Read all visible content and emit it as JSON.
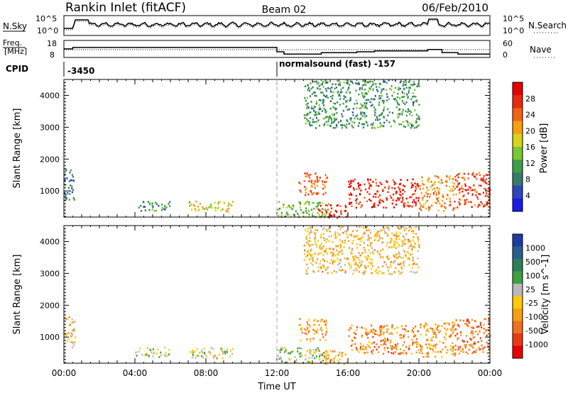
{
  "header": {
    "station": "Rankin Inlet (fitACF)",
    "beam": "Beam 02",
    "date": "06/Feb/2010"
  },
  "noise_panel": {
    "left_label": "N.Sky",
    "right_label": "N.Search",
    "left_ticks": [
      "10^5",
      "10^0"
    ],
    "right_ticks": [
      "10^5",
      "10^0"
    ]
  },
  "freq_panel": {
    "left_label_1": "Freq.",
    "left_label_2": "[MHz]",
    "right_label": "Nave",
    "left_ticks": [
      "18",
      "8"
    ],
    "right_ticks": [
      "60",
      "0"
    ],
    "freq_steps": [
      {
        "t": 0.0,
        "v": 15.6
      },
      {
        "t": 0.5,
        "v": 16.8
      },
      {
        "t": 11.95,
        "v": 16.8
      },
      {
        "t": 12.0,
        "v": 13.0
      },
      {
        "t": 12.4,
        "v": 11.0
      },
      {
        "t": 14.5,
        "v": 12.2
      },
      {
        "t": 16.5,
        "v": 13.0
      },
      {
        "t": 17.5,
        "v": 13.8
      },
      {
        "t": 20.5,
        "v": 15.0
      },
      {
        "t": 21.3,
        "v": 12.3
      },
      {
        "t": 22.2,
        "v": 11.0
      },
      {
        "t": 24.0,
        "v": 11.0
      }
    ]
  },
  "cpid": {
    "label": "CPID",
    "first": "-3450",
    "second": "normalsound (fast) -157"
  },
  "power_panel": {
    "ylabel": "Slant Range [km]",
    "colorbar_label": "Power [dB]",
    "colorbar_ticks": [
      "28",
      "24",
      "20",
      "16",
      "12",
      "8",
      "4"
    ],
    "colors": [
      "#1a1ae6",
      "#2e46b8",
      "#377a68",
      "#3e9e48",
      "#78c832",
      "#d9d21a",
      "#f5a014",
      "#f06414",
      "#e82a14",
      "#e60000"
    ]
  },
  "velocity_panel": {
    "ylabel": "Slant Range [km]",
    "colorbar_label": "Velocity [m s^-1]",
    "colorbar_ticks": [
      "1000",
      "500",
      "100",
      "25",
      "-25",
      "-100",
      "-500",
      "-1000"
    ],
    "colors": [
      "#1e3ca0",
      "#2a5e8c",
      "#2e7e5a",
      "#3ea040",
      "#b9b9b9",
      "#ffc90a",
      "#f5a014",
      "#f07020",
      "#e83a14",
      "#e60000"
    ]
  },
  "axes": {
    "x_ticks": [
      "00:00",
      "04:00",
      "08:00",
      "12:00",
      "16:00",
      "20:00",
      "00:00"
    ],
    "x_label": "Time UT",
    "y_ticks": [
      "4000",
      "3000",
      "2000",
      "1000"
    ]
  },
  "chart_data": {
    "type": "heatmap",
    "title": "Rankin Inlet (fitACF)",
    "xlabel": "Time UT",
    "ylabel": "Slant Range [km]",
    "xlim": [
      0,
      24
    ],
    "ylim": [
      180,
      4500
    ],
    "panels": [
      {
        "name": "Power [dB]",
        "range": [
          0,
          32
        ],
        "regions": [
          {
            "t": [
              0.0,
              0.6
            ],
            "r": [
              700,
              1700
            ],
            "v": 8
          },
          {
            "t": [
              4.0,
              6.0
            ],
            "r": [
              400,
              700
            ],
            "v": 10
          },
          {
            "t": [
              7.0,
              9.5
            ],
            "r": [
              350,
              700
            ],
            "v": 18
          },
          {
            "t": [
              12.0,
              15.0
            ],
            "r": [
              200,
              700
            ],
            "v": 14
          },
          {
            "t": [
              13.2,
              14.8
            ],
            "r": [
              900,
              1600
            ],
            "v": 24
          },
          {
            "t": [
              14.3,
              16.0
            ],
            "r": [
              180,
              600
            ],
            "v": 28
          },
          {
            "t": [
              16.0,
              20.0
            ],
            "r": [
              500,
              1400
            ],
            "v": 28
          },
          {
            "t": [
              20.0,
              22.0
            ],
            "r": [
              400,
              1500
            ],
            "v": 22
          },
          {
            "t": [
              22.0,
              24.0
            ],
            "r": [
              500,
              1600
            ],
            "v": 26
          },
          {
            "t": [
              13.5,
              20.0
            ],
            "r": [
              3000,
              4500
            ],
            "v": 10
          }
        ]
      },
      {
        "name": "Velocity [m s^-1]",
        "range": [
          -1000,
          1000
        ],
        "regions": [
          {
            "t": [
              0.0,
              0.6
            ],
            "r": [
              700,
              1700
            ],
            "v": -100
          },
          {
            "t": [
              4.0,
              6.0
            ],
            "r": [
              400,
              700
            ],
            "v": 100
          },
          {
            "t": [
              7.0,
              9.5
            ],
            "r": [
              350,
              700
            ],
            "v": 50
          },
          {
            "t": [
              12.0,
              15.0
            ],
            "r": [
              200,
              700
            ],
            "v": 100
          },
          {
            "t": [
              13.2,
              14.8
            ],
            "r": [
              900,
              1600
            ],
            "v": -300
          },
          {
            "t": [
              14.3,
              16.0
            ],
            "r": [
              180,
              600
            ],
            "v": -200
          },
          {
            "t": [
              16.0,
              20.0
            ],
            "r": [
              500,
              1400
            ],
            "v": -400
          },
          {
            "t": [
              20.0,
              22.0
            ],
            "r": [
              400,
              1500
            ],
            "v": -300
          },
          {
            "t": [
              22.0,
              24.0
            ],
            "r": [
              500,
              1600
            ],
            "v": -500
          },
          {
            "t": [
              13.5,
              20.0
            ],
            "r": [
              3000,
              4500
            ],
            "v": -150
          }
        ]
      }
    ]
  }
}
